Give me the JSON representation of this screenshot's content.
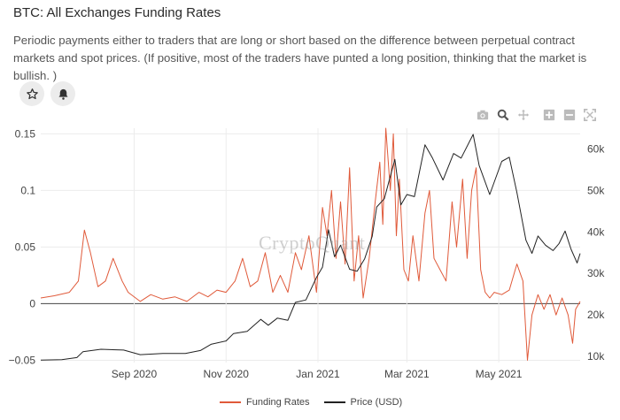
{
  "header": {
    "title": "BTC: All Exchanges Funding Rates",
    "description": "Periodic payments either to traders that are long or short based on the difference between perpetual contract markets and spot prices. (If positive, most of the traders have punted a long position, thinking that the market is bullish. )"
  },
  "actions": {
    "favorite_icon": "star-icon",
    "alert_icon": "bell-icon"
  },
  "toolbar": [
    "camera-icon",
    "zoom-icon",
    "pan-icon",
    "zoom-in-icon",
    "zoom-out-icon",
    "autoscale-icon"
  ],
  "watermark": "CryptoQuant",
  "chart_data": {
    "type": "line",
    "title": "",
    "x_ticks": [
      "Sep 2020",
      "Nov 2020",
      "Jan 2021",
      "Mar 2021",
      "May 2021"
    ],
    "x_range": [
      "2020-07-01",
      "2021-06-24"
    ],
    "y_left": {
      "ticks": [
        "0.15",
        "0.1",
        "0.05",
        "0",
        "−0.05"
      ],
      "range": [
        -0.052,
        0.155
      ]
    },
    "y_right": {
      "ticks": [
        "60k",
        "50k",
        "40k",
        "30k",
        "20k",
        "10k"
      ],
      "range": [
        8500,
        65000
      ]
    },
    "grid": true,
    "legend_position": "bottom-center",
    "series": [
      {
        "name": "Funding Rates",
        "axis": "left",
        "color": "#e05a3a",
        "points": [
          [
            "2020-07-01",
            0.005
          ],
          [
            "2020-07-10",
            0.007
          ],
          [
            "2020-07-20",
            0.01
          ],
          [
            "2020-07-26",
            0.02
          ],
          [
            "2020-07-30",
            0.065
          ],
          [
            "2020-08-03",
            0.045
          ],
          [
            "2020-08-08",
            0.015
          ],
          [
            "2020-08-13",
            0.02
          ],
          [
            "2020-08-18",
            0.04
          ],
          [
            "2020-08-24",
            0.02
          ],
          [
            "2020-08-28",
            0.01
          ],
          [
            "2020-09-05",
            0.002
          ],
          [
            "2020-09-12",
            0.008
          ],
          [
            "2020-09-20",
            0.004
          ],
          [
            "2020-09-28",
            0.006
          ],
          [
            "2020-10-06",
            0.002
          ],
          [
            "2020-10-14",
            0.01
          ],
          [
            "2020-10-20",
            0.006
          ],
          [
            "2020-10-26",
            0.012
          ],
          [
            "2020-11-01",
            0.01
          ],
          [
            "2020-11-07",
            0.02
          ],
          [
            "2020-11-12",
            0.04
          ],
          [
            "2020-11-17",
            0.015
          ],
          [
            "2020-11-22",
            0.02
          ],
          [
            "2020-11-27",
            0.045
          ],
          [
            "2020-12-02",
            0.01
          ],
          [
            "2020-12-07",
            0.025
          ],
          [
            "2020-12-12",
            0.01
          ],
          [
            "2020-12-17",
            0.045
          ],
          [
            "2020-12-21",
            0.03
          ],
          [
            "2020-12-26",
            0.06
          ],
          [
            "2020-12-31",
            0.01
          ],
          [
            "2021-01-04",
            0.085
          ],
          [
            "2021-01-07",
            0.06
          ],
          [
            "2021-01-10",
            0.1
          ],
          [
            "2021-01-13",
            0.04
          ],
          [
            "2021-01-16",
            0.09
          ],
          [
            "2021-01-19",
            0.035
          ],
          [
            "2021-01-22",
            0.12
          ],
          [
            "2021-01-25",
            0.02
          ],
          [
            "2021-01-28",
            0.06
          ],
          [
            "2021-01-31",
            0.005
          ],
          [
            "2021-02-04",
            0.04
          ],
          [
            "2021-02-08",
            0.09
          ],
          [
            "2021-02-11",
            0.125
          ],
          [
            "2021-02-13",
            0.07
          ],
          [
            "2021-02-15",
            0.155
          ],
          [
            "2021-02-18",
            0.1
          ],
          [
            "2021-02-20",
            0.15
          ],
          [
            "2021-02-22",
            0.06
          ],
          [
            "2021-02-24",
            0.11
          ],
          [
            "2021-02-27",
            0.03
          ],
          [
            "2021-03-02",
            0.02
          ],
          [
            "2021-03-05",
            0.06
          ],
          [
            "2021-03-09",
            0.02
          ],
          [
            "2021-03-13",
            0.08
          ],
          [
            "2021-03-16",
            0.1
          ],
          [
            "2021-03-19",
            0.04
          ],
          [
            "2021-03-23",
            0.03
          ],
          [
            "2021-03-27",
            0.02
          ],
          [
            "2021-03-31",
            0.09
          ],
          [
            "2021-04-03",
            0.05
          ],
          [
            "2021-04-07",
            0.11
          ],
          [
            "2021-04-10",
            0.04
          ],
          [
            "2021-04-13",
            0.1
          ],
          [
            "2021-04-16",
            0.12
          ],
          [
            "2021-04-19",
            0.03
          ],
          [
            "2021-04-22",
            0.01
          ],
          [
            "2021-04-25",
            0.005
          ],
          [
            "2021-04-28",
            0.01
          ],
          [
            "2021-05-03",
            0.008
          ],
          [
            "2021-05-08",
            0.012
          ],
          [
            "2021-05-13",
            0.035
          ],
          [
            "2021-05-17",
            0.02
          ],
          [
            "2021-05-20",
            -0.05
          ],
          [
            "2021-05-23",
            -0.01
          ],
          [
            "2021-05-27",
            0.008
          ],
          [
            "2021-05-31",
            -0.005
          ],
          [
            "2021-06-04",
            0.008
          ],
          [
            "2021-06-08",
            -0.01
          ],
          [
            "2021-06-12",
            0.005
          ],
          [
            "2021-06-16",
            -0.01
          ],
          [
            "2021-06-19",
            -0.035
          ],
          [
            "2021-06-21",
            -0.005
          ],
          [
            "2021-06-24",
            0.002
          ]
        ]
      },
      {
        "name": "Price (USD)",
        "axis": "right",
        "color": "#222222",
        "points": [
          [
            "2020-07-01",
            9100
          ],
          [
            "2020-07-15",
            9200
          ],
          [
            "2020-07-25",
            9700
          ],
          [
            "2020-07-29",
            11100
          ],
          [
            "2020-08-10",
            11700
          ],
          [
            "2020-08-25",
            11500
          ],
          [
            "2020-09-05",
            10400
          ],
          [
            "2020-09-20",
            10700
          ],
          [
            "2020-10-05",
            10700
          ],
          [
            "2020-10-15",
            11400
          ],
          [
            "2020-10-22",
            12900
          ],
          [
            "2020-11-01",
            13700
          ],
          [
            "2020-11-06",
            15500
          ],
          [
            "2020-11-15",
            16000
          ],
          [
            "2020-11-24",
            18900
          ],
          [
            "2020-11-29",
            17500
          ],
          [
            "2020-12-05",
            19200
          ],
          [
            "2020-12-12",
            18700
          ],
          [
            "2020-12-17",
            23000
          ],
          [
            "2020-12-24",
            23600
          ],
          [
            "2020-12-31",
            29000
          ],
          [
            "2021-01-04",
            31500
          ],
          [
            "2021-01-08",
            40500
          ],
          [
            "2021-01-12",
            34000
          ],
          [
            "2021-01-16",
            36800
          ],
          [
            "2021-01-22",
            31000
          ],
          [
            "2021-01-27",
            30500
          ],
          [
            "2021-02-01",
            33500
          ],
          [
            "2021-02-06",
            38900
          ],
          [
            "2021-02-09",
            46000
          ],
          [
            "2021-02-14",
            48000
          ],
          [
            "2021-02-21",
            57500
          ],
          [
            "2021-02-25",
            46500
          ],
          [
            "2021-03-01",
            49000
          ],
          [
            "2021-03-06",
            48500
          ],
          [
            "2021-03-13",
            61000
          ],
          [
            "2021-03-18",
            57800
          ],
          [
            "2021-03-25",
            52500
          ],
          [
            "2021-04-01",
            58900
          ],
          [
            "2021-04-06",
            57800
          ],
          [
            "2021-04-14",
            63500
          ],
          [
            "2021-04-18",
            56000
          ],
          [
            "2021-04-25",
            49000
          ],
          [
            "2021-05-03",
            57000
          ],
          [
            "2021-05-08",
            58000
          ],
          [
            "2021-05-13",
            49500
          ],
          [
            "2021-05-19",
            38000
          ],
          [
            "2021-05-23",
            34800
          ],
          [
            "2021-05-27",
            39000
          ],
          [
            "2021-06-01",
            36800
          ],
          [
            "2021-06-06",
            35500
          ],
          [
            "2021-06-10",
            37200
          ],
          [
            "2021-06-14",
            40200
          ],
          [
            "2021-06-18",
            35800
          ],
          [
            "2021-06-22",
            32500
          ],
          [
            "2021-06-24",
            34800
          ]
        ]
      }
    ]
  }
}
